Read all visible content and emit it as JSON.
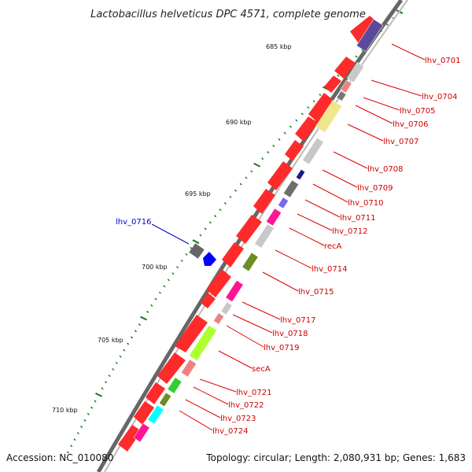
{
  "title": "Lactobacillus helveticus DPC 4571, complete genome",
  "accession": "Accession: NC_010080",
  "topology": "Topology: circular; Length: 2,080,931 bp; Genes: 1,683",
  "ruler": [
    {
      "label": "685 kbp"
    },
    {
      "label": "690 kbp"
    },
    {
      "label": "695 kbp"
    },
    {
      "label": "700 kbp"
    },
    {
      "label": "705 kbp"
    },
    {
      "label": "710 kbp"
    }
  ],
  "genes": [
    {
      "label": "lhv_0701",
      "color": "#5b4a9a"
    },
    {
      "label": "lhv_0704",
      "color": "#c8c8c8"
    },
    {
      "label": "lhv_0705",
      "color": "#f08080"
    },
    {
      "label": "lhv_0706",
      "color": "#777777"
    },
    {
      "label": "lhv_0707",
      "color": "#f0e68c"
    },
    {
      "label": "lhv_0708",
      "color": "#c8c8c8"
    },
    {
      "label": "lhv_0709",
      "color": "#1a1a8c"
    },
    {
      "label": "lhv_0710",
      "color": "#6e6e6e"
    },
    {
      "label": "lhv_0711",
      "color": "#7b68ee"
    },
    {
      "label": "lhv_0712",
      "color": "#ff1493"
    },
    {
      "label": "recA",
      "color": "#c8c8c8"
    },
    {
      "label": "lhv_0714",
      "color": "#6b8e23"
    },
    {
      "label": "lhv_0715",
      "color": "#ff1493"
    },
    {
      "label": "lhv_0717",
      "color": "#c8c8c8"
    },
    {
      "label": "lhv_0718",
      "color": "#f08080"
    },
    {
      "label": "lhv_0719",
      "color": "#adff2f"
    },
    {
      "label": "secA",
      "color": "#f08080"
    },
    {
      "label": "lhv_0721",
      "color": "#32cd32"
    },
    {
      "label": "lhv_0722",
      "color": "#6b8e23"
    },
    {
      "label": "lhv_0723",
      "color": "#00ffff"
    },
    {
      "label": "lhv_0724",
      "color": "#ff1493"
    },
    {
      "label": "lhv_0716",
      "color": "#0000ff"
    }
  ]
}
